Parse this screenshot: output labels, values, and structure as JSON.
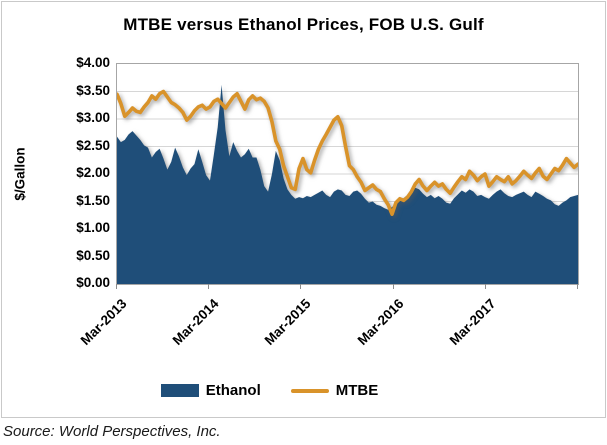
{
  "chart": {
    "title": "MTBE versus Ethanol Prices, FOB U.S. Gulf",
    "y_axis_title": "$/Gallon",
    "source": "Source: World Perspectives, Inc."
  },
  "colors": {
    "ethanol_fill": "#1F4E79",
    "mtbe_line": "#D9932A",
    "gridline": "#d6d6d6",
    "plot_border": "#a6a6a6"
  },
  "chart_data": {
    "type": "area",
    "title": "MTBE versus Ethanol Prices, FOB U.S. Gulf",
    "xlabel": "",
    "ylabel": "$/Gallon",
    "ylim": [
      0,
      4
    ],
    "y_tick_step": 0.5,
    "y_tick_labels": [
      "$0.00",
      "$0.50",
      "$1.00",
      "$1.50",
      "$2.00",
      "$2.50",
      "$3.00",
      "$3.50",
      "$4.00"
    ],
    "x_tick_labels": [
      "Mar-2013",
      "Mar-2014",
      "Mar-2015",
      "Mar-2016",
      "Mar-2017"
    ],
    "x_range_note": "semi-monthly points, Mar-2013 through Feb-2018",
    "grid": "horizontal",
    "legend_position": "bottom",
    "series": [
      {
        "name": "Ethanol",
        "render": "area",
        "color": "#1F4E79",
        "values": [
          2.68,
          2.58,
          2.62,
          2.72,
          2.78,
          2.7,
          2.62,
          2.52,
          2.48,
          2.3,
          2.4,
          2.46,
          2.28,
          2.08,
          2.22,
          2.48,
          2.32,
          2.12,
          1.98,
          2.1,
          2.18,
          2.45,
          2.22,
          1.98,
          1.88,
          2.35,
          2.85,
          3.62,
          2.8,
          2.32,
          2.58,
          2.42,
          2.3,
          2.36,
          2.46,
          2.3,
          2.3,
          2.08,
          1.78,
          1.68,
          2.0,
          2.42,
          2.25,
          1.92,
          1.72,
          1.62,
          1.55,
          1.58,
          1.56,
          1.6,
          1.58,
          1.62,
          1.66,
          1.7,
          1.62,
          1.58,
          1.68,
          1.72,
          1.7,
          1.62,
          1.6,
          1.68,
          1.7,
          1.64,
          1.55,
          1.48,
          1.5,
          1.44,
          1.42,
          1.38,
          1.35,
          1.4,
          1.46,
          1.52,
          1.56,
          1.62,
          1.68,
          1.75,
          1.72,
          1.64,
          1.58,
          1.62,
          1.56,
          1.6,
          1.55,
          1.48,
          1.46,
          1.56,
          1.63,
          1.7,
          1.66,
          1.72,
          1.68,
          1.6,
          1.62,
          1.58,
          1.55,
          1.62,
          1.68,
          1.72,
          1.65,
          1.6,
          1.58,
          1.62,
          1.65,
          1.68,
          1.62,
          1.58,
          1.68,
          1.64,
          1.6,
          1.55,
          1.52,
          1.45,
          1.42,
          1.48,
          1.52,
          1.58,
          1.6,
          1.62
        ]
      },
      {
        "name": "MTBE",
        "render": "line",
        "color": "#D9932A",
        "values": [
          3.45,
          3.28,
          3.05,
          3.12,
          3.2,
          3.14,
          3.12,
          3.22,
          3.3,
          3.42,
          3.36,
          3.46,
          3.5,
          3.4,
          3.3,
          3.26,
          3.2,
          3.12,
          2.98,
          3.05,
          3.15,
          3.22,
          3.25,
          3.18,
          3.22,
          3.32,
          3.36,
          3.28,
          3.2,
          3.3,
          3.4,
          3.46,
          3.32,
          3.18,
          3.35,
          3.42,
          3.35,
          3.38,
          3.32,
          3.2,
          2.95,
          2.6,
          2.45,
          2.15,
          1.95,
          1.75,
          1.72,
          2.1,
          2.28,
          2.08,
          2.02,
          2.25,
          2.45,
          2.6,
          2.72,
          2.85,
          2.98,
          3.04,
          2.88,
          2.5,
          2.15,
          2.08,
          1.95,
          1.85,
          1.7,
          1.75,
          1.8,
          1.72,
          1.68,
          1.55,
          1.44,
          1.27,
          1.48,
          1.55,
          1.52,
          1.58,
          1.68,
          1.82,
          1.9,
          1.78,
          1.7,
          1.78,
          1.85,
          1.78,
          1.82,
          1.72,
          1.65,
          1.76,
          1.86,
          1.95,
          1.9,
          2.05,
          1.98,
          1.88,
          1.95,
          2.0,
          1.78,
          1.86,
          1.95,
          1.9,
          1.86,
          1.95,
          1.82,
          1.88,
          1.96,
          2.05,
          1.98,
          1.92,
          2.02,
          2.1,
          1.96,
          1.9,
          2.0,
          2.1,
          2.06,
          2.16,
          2.28,
          2.2,
          2.12,
          2.18
        ]
      }
    ]
  },
  "legend": {
    "ethanol_label": "Ethanol",
    "mtbe_label": "MTBE"
  }
}
